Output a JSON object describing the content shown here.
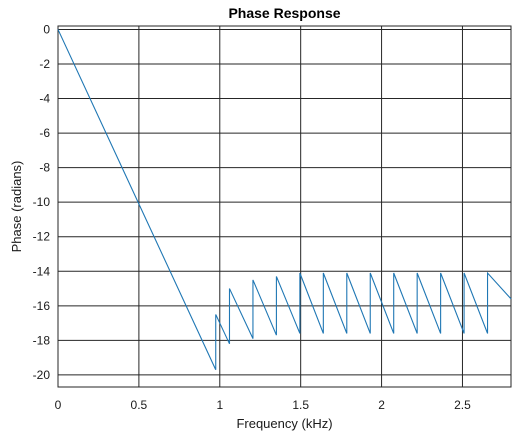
{
  "chart_data": {
    "type": "line",
    "title": "Phase Response",
    "xlabel": "Frequency (kHz)",
    "ylabel": "Phase (radians)",
    "xlim": [
      0,
      2.8
    ],
    "ylim": [
      -20.7,
      0.2
    ],
    "xticks": [
      0,
      0.5,
      1,
      1.5,
      2,
      2.5
    ],
    "xtick_labels": [
      "0",
      "0.5",
      "1",
      "1.5",
      "2",
      "2.5"
    ],
    "yticks": [
      0,
      -2,
      -4,
      -6,
      -8,
      -10,
      -12,
      -14,
      -16,
      -18,
      -20
    ],
    "ytick_labels": [
      "0",
      "-2",
      "-4",
      "-6",
      "-8",
      "-10",
      "-12",
      "-14",
      "-16",
      "-18",
      "-20"
    ],
    "grid": true,
    "line_color": "#1f77b4",
    "series": [
      {
        "x": [
          0,
          0.975,
          0.975,
          1.06,
          1.06,
          1.205,
          1.205,
          1.35,
          1.35,
          1.495,
          1.495,
          1.64,
          1.64,
          1.785,
          1.785,
          1.93,
          1.93,
          2.075,
          2.075,
          2.22,
          2.22,
          2.365,
          2.365,
          2.51,
          2.51,
          2.655,
          2.655,
          2.8
        ],
        "y": [
          0,
          -19.7,
          -16.5,
          -18.2,
          -15.0,
          -17.9,
          -14.5,
          -17.7,
          -14.3,
          -17.6,
          -14.1,
          -17.6,
          -14.1,
          -17.6,
          -14.1,
          -17.6,
          -14.1,
          -17.6,
          -14.1,
          -17.6,
          -14.1,
          -17.6,
          -14.1,
          -17.6,
          -14.1,
          -17.6,
          -14.1,
          -15.6
        ]
      }
    ]
  }
}
